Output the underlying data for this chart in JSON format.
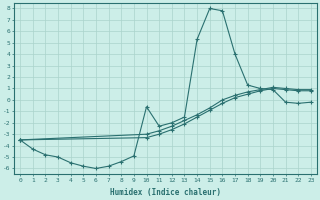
{
  "xlabel": "Humidex (Indice chaleur)",
  "ylabel": "",
  "xlim": [
    -0.5,
    23.5
  ],
  "ylim": [
    -6.5,
    8.5
  ],
  "background_color": "#cceee8",
  "grid_color": "#aad4cc",
  "line_color": "#2a7070",
  "line1_x": [
    0,
    1,
    2,
    3,
    4,
    5,
    6,
    7,
    8,
    9,
    10,
    11,
    12,
    13,
    14,
    15,
    16,
    17,
    18,
    19,
    20,
    21,
    22,
    23
  ],
  "line1_y": [
    -3.5,
    -4.3,
    -4.8,
    -5.0,
    -5.5,
    -5.8,
    -6.0,
    -5.8,
    -5.4,
    -4.9,
    -0.6,
    -2.3,
    -2.0,
    -1.5,
    5.3,
    8.0,
    7.8,
    4.0,
    1.3,
    1.0,
    0.9,
    -0.2,
    -0.3,
    -0.2
  ],
  "line2_x": [
    0,
    10,
    11,
    12,
    13,
    14,
    15,
    16,
    17,
    18,
    19,
    20,
    21,
    22,
    23
  ],
  "line2_y": [
    -3.5,
    -3.0,
    -2.7,
    -2.3,
    -1.8,
    -1.3,
    -0.7,
    0.0,
    0.4,
    0.7,
    0.9,
    1.1,
    1.0,
    0.9,
    0.9
  ],
  "line3_x": [
    0,
    10,
    11,
    12,
    13,
    14,
    15,
    16,
    17,
    18,
    19,
    20,
    21,
    22,
    23
  ],
  "line3_y": [
    -3.5,
    -3.3,
    -3.0,
    -2.6,
    -2.1,
    -1.5,
    -0.9,
    -0.3,
    0.2,
    0.5,
    0.8,
    1.0,
    0.9,
    0.8,
    0.8
  ],
  "xticks": [
    0,
    1,
    2,
    3,
    4,
    5,
    6,
    7,
    8,
    9,
    10,
    11,
    12,
    13,
    14,
    15,
    16,
    17,
    18,
    19,
    20,
    21,
    22,
    23
  ],
  "yticks": [
    -6,
    -5,
    -4,
    -3,
    -2,
    -1,
    0,
    1,
    2,
    3,
    4,
    5,
    6,
    7,
    8
  ],
  "marker": "+"
}
